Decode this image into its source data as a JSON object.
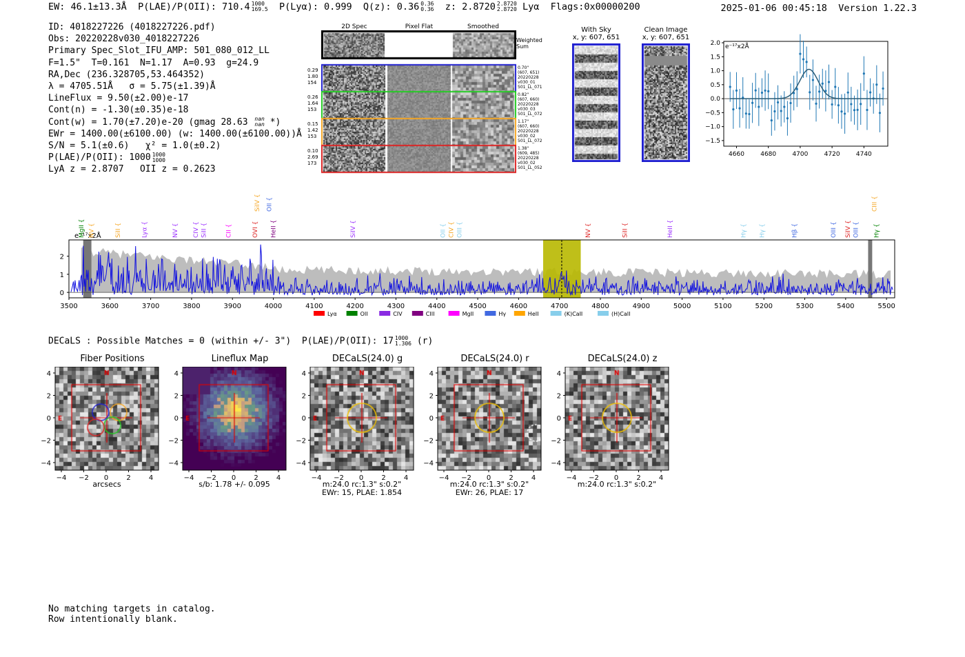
{
  "header": {
    "ew": "EW: 46.1±13.3Å",
    "plae": "P(LAE)/P(OII): 710.4",
    "plae_hi": "1000",
    "plae_lo": "169.5",
    "plya": "P(Lyα): 0.999",
    "qz": "Q(z): 0.36",
    "qz_hi": "0.36",
    "qz_lo": "0.36",
    "z": "z: 2.8720",
    "z_hi": "2.8720",
    "z_lo": "2.8720",
    "line": "Lyα",
    "flags": "Flags:0x00000200",
    "timestamp": "2025-01-06 00:45:18",
    "version": "Version 1.22.3"
  },
  "info": {
    "l1": "ID: 4018227226 (4018227226.pdf)",
    "l2": "Obs: 20220228v030_4018227226",
    "l3": "Primary Spec_Slot_IFU_AMP: 501_080_012_LL",
    "l4": "F=1.5\"  T=0.161  N=1.17  A=0.93  g=24.9",
    "l5": "RA,Dec (236.328705,53.464352)",
    "l6": "λ = 4705.51Å   σ = 5.75(±1.39)Å",
    "l7": "LineFlux = 9.50(±2.00)e-17",
    "l8": "Cont(n) = -1.30(±0.35)e-18",
    "l9": "Cont(w) = 1.70(±7.20)e-20 (gmag 28.63",
    "l9_hi": "nan",
    "l9_lo": "nan",
    "l9_end": "*)",
    "l10": "EWr = 1400.00(±6100.00) (w: 1400.00(±6100.00))Å",
    "l11": "S/N = 5.1(±0.6)   χ² = 1.0(±0.2)",
    "l12": "P(LAE)/P(OII): 1000",
    "l12_hi": "1000",
    "l12_lo": "1000",
    "l13": "LyA z = 2.8707   OII z = 0.2623"
  },
  "spec2d": {
    "col1": "2D Spec",
    "col2": "Pixel Flat",
    "col3": "Smoothed",
    "weighted": "Weighted",
    "sum": "Sum",
    "rows": [
      {
        "l1": "0.29",
        "l2": "1.80",
        "l3": "154",
        "r1": "0.70\"",
        "r2": "(607, 651)",
        "r3": "20220228",
        "r4": "v030_01",
        "r5": "501_LL_071",
        "color": "#1f1fd0"
      },
      {
        "l1": "0.26",
        "l2": "1.64",
        "l3": "153",
        "r1": "0.82\"",
        "r2": "(607, 660)",
        "r3": "20220228",
        "r4": "v030_03",
        "r5": "501_LL_072",
        "color": "#22cc22"
      },
      {
        "l1": "0.15",
        "l2": "1.42",
        "l3": "153",
        "r1": "1.17\"",
        "r2": "(607, 660)",
        "r3": "20220228",
        "r4": "v030_02",
        "r5": "501_LL_072",
        "color": "#f5a623"
      },
      {
        "l1": "0.10",
        "l2": "2.69",
        "l3": "173",
        "r1": "1.38\"",
        "r2": "(609, 485)",
        "r3": "20220228",
        "r4": "v030_02",
        "r5": "501_LL_052",
        "color": "#dd2222"
      }
    ]
  },
  "cutouts": {
    "withsky_title": "With Sky",
    "withsky_xy": "x, y: 607, 651",
    "clean_title": "Clean Image",
    "clean_xy": "x, y: 607, 651"
  },
  "zoom": {
    "ylabel": "e⁻¹⁷x2Å",
    "xticks": [
      "4660",
      "4680",
      "4700",
      "4720",
      "4740"
    ],
    "yticks": [
      "2.0",
      "1.5",
      "1.0",
      "0.5",
      "0.0",
      "−0.5",
      "−1.0",
      "−1.5"
    ]
  },
  "chart_data": {
    "type": "line",
    "title": "",
    "ylabel": "e⁻¹⁷x2Å",
    "xlim": [
      3500,
      5520
    ],
    "ylim": [
      -0.3,
      2.9
    ],
    "xticks": [
      "3500",
      "3600",
      "3700",
      "3800",
      "3900",
      "4000",
      "4100",
      "4200",
      "4300",
      "4400",
      "4500",
      "4600",
      "4700",
      "4800",
      "4900",
      "5000",
      "5100",
      "5200",
      "5300",
      "5400",
      "5500"
    ],
    "yticks": [
      "0",
      "1",
      "2"
    ],
    "highlight_range": [
      4660,
      4752
    ],
    "line_center": 4705.5,
    "line_labels": [
      {
        "name": "MgII",
        "w": 3530,
        "color": "#008000",
        "row": 2
      },
      {
        "name": "NV",
        "w": 3555,
        "color": "#f5a623",
        "row": 2
      },
      {
        "name": "SiII",
        "w": 3620,
        "color": "#f5a623",
        "row": 2
      },
      {
        "name": "Lyα",
        "w": 3685,
        "color": "#9b30ff",
        "row": 2
      },
      {
        "name": "NV",
        "w": 3760,
        "color": "#9b30ff",
        "row": 2
      },
      {
        "name": "CIV",
        "w": 3810,
        "color": "#9b30ff",
        "row": 2
      },
      {
        "name": "SiII",
        "w": 3830,
        "color": "#9b30ff",
        "row": 2
      },
      {
        "name": "CII",
        "w": 3890,
        "color": "#ff00ff",
        "row": 2
      },
      {
        "name": "OVI",
        "w": 3955,
        "color": "#dd2222",
        "row": 2
      },
      {
        "name": "SiIV",
        "w": 3960,
        "color": "#f5a623",
        "row": 1
      },
      {
        "name": "OII",
        "w": 3990,
        "color": "#4169e1",
        "row": 1
      },
      {
        "name": "HeII",
        "w": 4000,
        "color": "#800080",
        "row": 2
      },
      {
        "name": "SiIV",
        "w": 4195,
        "color": "#9b30ff",
        "row": 2
      },
      {
        "name": "OII",
        "w": 4415,
        "color": "#87ceeb",
        "row": 2
      },
      {
        "name": "CIV",
        "w": 4435,
        "color": "#f5a623",
        "row": 2
      },
      {
        "name": "OIII",
        "w": 4455,
        "color": "#87ceeb",
        "row": 2
      },
      {
        "name": "NV",
        "w": 4770,
        "color": "#dd2222",
        "row": 2
      },
      {
        "name": "SiII",
        "w": 4860,
        "color": "#dd2222",
        "row": 2
      },
      {
        "name": "HeII",
        "w": 4970,
        "color": "#9b30ff",
        "row": 2
      },
      {
        "name": "Hγ",
        "w": 5150,
        "color": "#87ceeb",
        "row": 2
      },
      {
        "name": "Hγ",
        "w": 5195,
        "color": "#87ceeb",
        "row": 2
      },
      {
        "name": "Hβ",
        "w": 5275,
        "color": "#4169e1",
        "row": 2
      },
      {
        "name": "OIII",
        "w": 5370,
        "color": "#4169e1",
        "row": 2
      },
      {
        "name": "SiIV",
        "w": 5405,
        "color": "#dd2222",
        "row": 2
      },
      {
        "name": "OIII",
        "w": 5425,
        "color": "#4169e1",
        "row": 2
      },
      {
        "name": "CIII",
        "w": 5470,
        "color": "#f5a623",
        "row": 1
      },
      {
        "name": "Hγ",
        "w": 5475,
        "color": "#008000",
        "row": 2
      }
    ],
    "legend": [
      {
        "name": "Lyα",
        "color": "#ff0000"
      },
      {
        "name": "OII",
        "color": "#008000"
      },
      {
        "name": "CIV",
        "color": "#8a2be2"
      },
      {
        "name": "CIII",
        "color": "#800080"
      },
      {
        "name": "MgII",
        "color": "#ff00ff"
      },
      {
        "name": "Hγ",
        "color": "#4169e1"
      },
      {
        "name": "HeII",
        "color": "#ffa500"
      },
      {
        "name": "(K)CaII",
        "color": "#87ceeb"
      },
      {
        "name": "(H)CaII",
        "color": "#87ceeb"
      }
    ]
  },
  "decals": {
    "summary": "DECaLS : Possible Matches = 0 (within +/- 3\")  P(LAE)/P(OII): 17",
    "summary_hi": "1000",
    "summary_lo": "1.306",
    "summary_end": "(r)"
  },
  "stamps": [
    {
      "title": "Fiber Positions",
      "cap1": "arcsecs",
      "cap2": ""
    },
    {
      "title": "Lineflux Map",
      "cap1": "s/b: 1.78 +/- 0.095",
      "cap2": ""
    },
    {
      "title": "DECaLS(24.0) g",
      "cap1": "m:24.0 rc:1.3\"  s:0.2\"",
      "cap2": "EWr: 15, PLAE: 1.854"
    },
    {
      "title": "DECaLS(24.0) r",
      "cap1": "m:24.0 rc:1.3\"  s:0.2\"",
      "cap2": "EWr: 26, PLAE: 17"
    },
    {
      "title": "DECaLS(24.0) z",
      "cap1": "m:24.0 rc:1.3\"  s:0.2\"",
      "cap2": ""
    }
  ],
  "stamp_axis": {
    "ticks": [
      "4",
      "2",
      "0",
      "−2",
      "−4"
    ],
    "xticks": [
      "−4",
      "−2",
      "0",
      "2",
      "4"
    ],
    "n": "N",
    "e": "E"
  },
  "footer": {
    "l1": "No matching targets in catalog.",
    "l2": "Row intentionally blank."
  }
}
